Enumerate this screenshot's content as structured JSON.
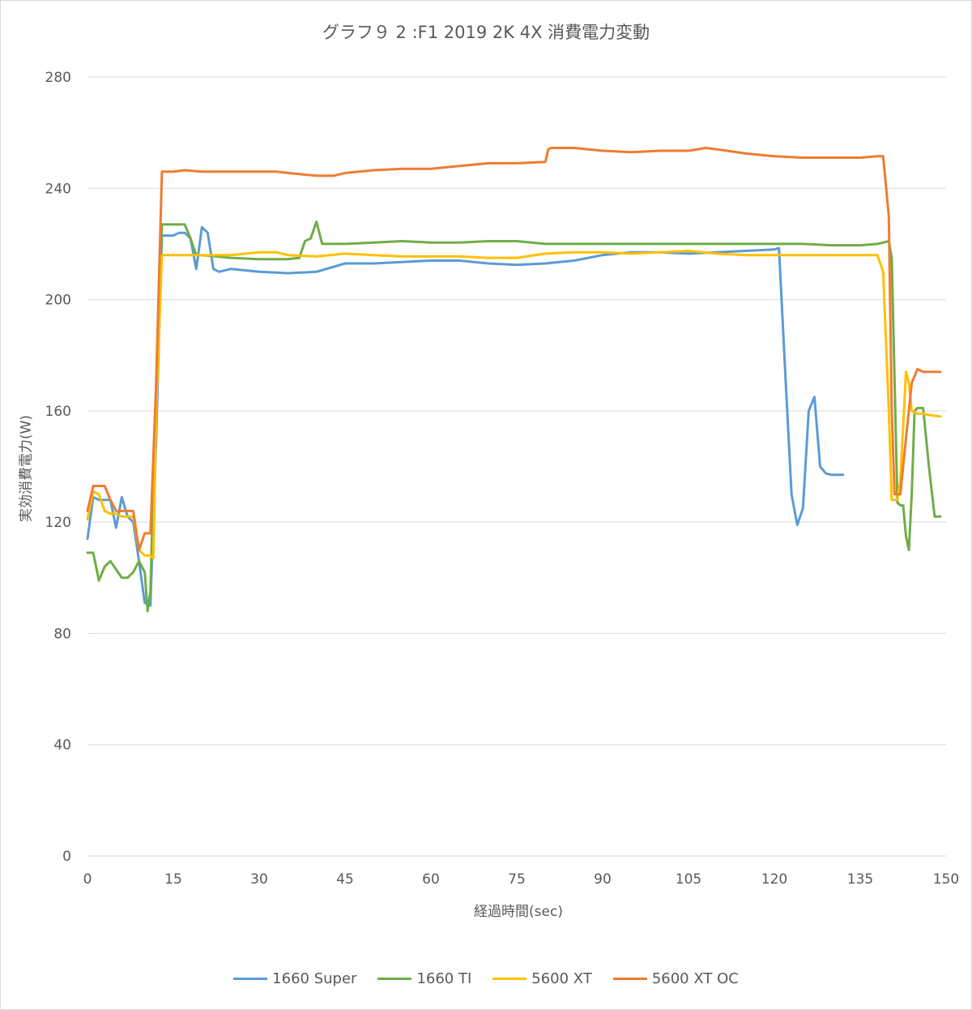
{
  "chart_data": {
    "type": "line",
    "title": "グラフ９ 2 :F1 2019 2K 4X 消費電力変動",
    "xlabel": "経過時間(sec)",
    "ylabel": "実効消費電力(W)",
    "xlim": [
      0,
      150
    ],
    "ylim": [
      0,
      280
    ],
    "xticks": [
      "0",
      "15",
      "30",
      "45",
      "60",
      "75",
      "90",
      "105",
      "120",
      "135",
      "150"
    ],
    "yticks": [
      "0",
      "40",
      "80",
      "120",
      "160",
      "200",
      "240",
      "280"
    ],
    "grid": true,
    "legend": "bottom",
    "series": [
      {
        "name": "1660 Super",
        "color": "#5b9bd5",
        "points": [
          [
            0,
            114
          ],
          [
            1,
            129
          ],
          [
            2,
            128
          ],
          [
            3,
            128
          ],
          [
            4,
            128
          ],
          [
            5,
            118
          ],
          [
            6,
            129
          ],
          [
            7,
            122
          ],
          [
            8,
            120
          ],
          [
            9,
            106
          ],
          [
            10,
            91
          ],
          [
            11,
            90
          ],
          [
            12,
            150
          ],
          [
            13,
            223
          ],
          [
            14,
            223
          ],
          [
            15,
            223
          ],
          [
            16,
            224
          ],
          [
            17,
            224
          ],
          [
            18,
            222
          ],
          [
            19,
            211
          ],
          [
            20,
            226
          ],
          [
            21,
            224
          ],
          [
            22,
            211
          ],
          [
            23,
            210
          ],
          [
            25,
            211
          ],
          [
            30,
            210
          ],
          [
            35,
            209.5
          ],
          [
            40,
            210
          ],
          [
            45,
            213
          ],
          [
            50,
            213
          ],
          [
            55,
            213.5
          ],
          [
            60,
            214
          ],
          [
            65,
            214
          ],
          [
            70,
            213
          ],
          [
            75,
            212.5
          ],
          [
            80,
            213
          ],
          [
            85,
            214
          ],
          [
            90,
            216
          ],
          [
            95,
            217
          ],
          [
            100,
            217
          ],
          [
            105,
            216.5
          ],
          [
            110,
            217
          ],
          [
            115,
            217.5
          ],
          [
            120,
            218
          ],
          [
            120.8,
            218.5
          ],
          [
            122,
            170
          ],
          [
            123,
            130
          ],
          [
            124,
            119
          ],
          [
            125,
            125
          ],
          [
            126,
            160
          ],
          [
            127,
            165
          ],
          [
            128,
            140
          ],
          [
            129,
            137.5
          ],
          [
            130,
            137
          ],
          [
            132,
            137
          ]
        ]
      },
      {
        "name": "1660 TI",
        "color": "#70ad47",
        "points": [
          [
            0,
            109
          ],
          [
            1,
            109
          ],
          [
            2,
            99
          ],
          [
            3,
            104
          ],
          [
            4,
            106
          ],
          [
            5,
            103
          ],
          [
            6,
            100
          ],
          [
            7,
            100
          ],
          [
            8,
            102
          ],
          [
            9,
            106
          ],
          [
            10,
            102
          ],
          [
            10.5,
            88
          ],
          [
            11,
            95
          ],
          [
            12,
            170
          ],
          [
            13,
            227
          ],
          [
            14,
            227
          ],
          [
            15,
            227
          ],
          [
            16,
            227
          ],
          [
            17,
            227
          ],
          [
            18,
            222
          ],
          [
            19,
            216
          ],
          [
            20,
            216
          ],
          [
            25,
            215
          ],
          [
            30,
            214.5
          ],
          [
            35,
            214.5
          ],
          [
            37,
            215
          ],
          [
            38,
            221
          ],
          [
            39,
            222
          ],
          [
            40,
            228
          ],
          [
            41,
            220
          ],
          [
            45,
            220
          ],
          [
            50,
            220.5
          ],
          [
            55,
            221
          ],
          [
            60,
            220.5
          ],
          [
            65,
            220.5
          ],
          [
            70,
            221
          ],
          [
            75,
            221
          ],
          [
            80,
            220
          ],
          [
            85,
            220
          ],
          [
            90,
            220
          ],
          [
            95,
            220
          ],
          [
            100,
            220
          ],
          [
            105,
            220
          ],
          [
            110,
            220
          ],
          [
            115,
            220
          ],
          [
            120,
            220
          ],
          [
            125,
            220
          ],
          [
            130,
            219.5
          ],
          [
            135,
            219.5
          ],
          [
            138,
            220
          ],
          [
            140,
            221
          ],
          [
            140.5,
            215
          ],
          [
            141.5,
            127
          ],
          [
            142,
            126
          ],
          [
            142.5,
            126
          ],
          [
            143,
            115
          ],
          [
            143.5,
            110
          ],
          [
            144,
            130
          ],
          [
            144.5,
            160
          ],
          [
            145,
            161
          ],
          [
            146,
            161
          ],
          [
            147,
            140
          ],
          [
            148,
            122
          ],
          [
            149,
            122
          ]
        ]
      },
      {
        "name": "5600 XT",
        "color": "#ffc000",
        "points": [
          [
            0,
            121
          ],
          [
            1,
            131
          ],
          [
            2,
            130
          ],
          [
            3,
            124
          ],
          [
            4,
            123
          ],
          [
            5,
            123
          ],
          [
            6,
            122
          ],
          [
            7,
            122
          ],
          [
            8,
            122
          ],
          [
            9,
            110
          ],
          [
            10,
            108
          ],
          [
            11,
            108
          ],
          [
            11.5,
            107
          ],
          [
            12,
            160
          ],
          [
            13,
            216
          ],
          [
            14,
            216
          ],
          [
            15,
            216
          ],
          [
            20,
            216
          ],
          [
            25,
            216
          ],
          [
            30,
            217
          ],
          [
            33,
            217
          ],
          [
            35,
            216
          ],
          [
            40,
            215.5
          ],
          [
            45,
            216.5
          ],
          [
            50,
            216
          ],
          [
            55,
            215.5
          ],
          [
            60,
            215.5
          ],
          [
            65,
            215.5
          ],
          [
            70,
            215
          ],
          [
            75,
            215
          ],
          [
            80,
            216.5
          ],
          [
            85,
            217
          ],
          [
            90,
            217
          ],
          [
            95,
            216.5
          ],
          [
            100,
            217
          ],
          [
            105,
            217.5
          ],
          [
            110,
            216.5
          ],
          [
            115,
            216
          ],
          [
            120,
            216
          ],
          [
            125,
            216
          ],
          [
            130,
            216
          ],
          [
            135,
            216
          ],
          [
            138,
            216
          ],
          [
            139,
            210
          ],
          [
            140,
            160
          ],
          [
            140.5,
            128
          ],
          [
            141.5,
            128
          ],
          [
            142,
            135
          ],
          [
            143,
            174
          ],
          [
            143.5,
            170
          ],
          [
            144,
            160
          ],
          [
            145,
            159
          ],
          [
            146,
            159
          ],
          [
            147,
            158.5
          ],
          [
            149,
            158
          ]
        ]
      },
      {
        "name": "5600 XT OC",
        "color": "#ed7d31",
        "points": [
          [
            0,
            124
          ],
          [
            1,
            133
          ],
          [
            2,
            133
          ],
          [
            3,
            133
          ],
          [
            4,
            128
          ],
          [
            5,
            124
          ],
          [
            6,
            124
          ],
          [
            7,
            124
          ],
          [
            8,
            124
          ],
          [
            9,
            110
          ],
          [
            10,
            116
          ],
          [
            11,
            116
          ],
          [
            12,
            170
          ],
          [
            13,
            246
          ],
          [
            14,
            246
          ],
          [
            15,
            246
          ],
          [
            17,
            246.5
          ],
          [
            20,
            246
          ],
          [
            25,
            246
          ],
          [
            30,
            246
          ],
          [
            33,
            246
          ],
          [
            35,
            245.5
          ],
          [
            40,
            244.5
          ],
          [
            43,
            244.5
          ],
          [
            45,
            245.5
          ],
          [
            50,
            246.5
          ],
          [
            55,
            247
          ],
          [
            60,
            247
          ],
          [
            65,
            248
          ],
          [
            70,
            249
          ],
          [
            75,
            249
          ],
          [
            80,
            249.5
          ],
          [
            80.5,
            254
          ],
          [
            81,
            254.5
          ],
          [
            85,
            254.5
          ],
          [
            90,
            253.5
          ],
          [
            95,
            253
          ],
          [
            100,
            253.5
          ],
          [
            105,
            253.5
          ],
          [
            108,
            254.5
          ],
          [
            110,
            254
          ],
          [
            115,
            252.5
          ],
          [
            120,
            251.5
          ],
          [
            125,
            251
          ],
          [
            130,
            251
          ],
          [
            135,
            251
          ],
          [
            138,
            251.5
          ],
          [
            139,
            251.5
          ],
          [
            140,
            230
          ],
          [
            140.5,
            160
          ],
          [
            141,
            130
          ],
          [
            142,
            130
          ],
          [
            143,
            150
          ],
          [
            144,
            170
          ],
          [
            145,
            175
          ],
          [
            146,
            174
          ],
          [
            147,
            174
          ],
          [
            149,
            174
          ]
        ]
      }
    ]
  }
}
